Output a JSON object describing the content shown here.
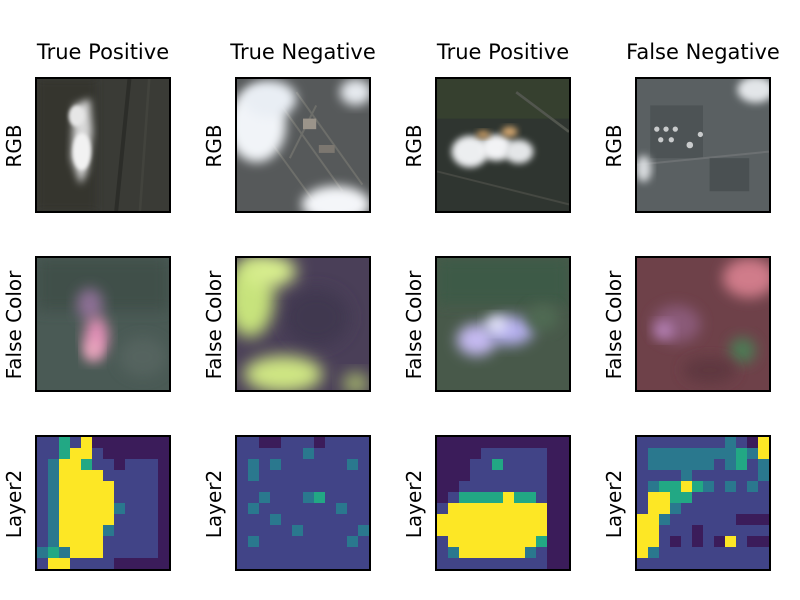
{
  "columns": [
    {
      "title": "True Positive",
      "row_labels": [
        "RGB",
        "False Color",
        "Layer2"
      ]
    },
    {
      "title": "True Negative",
      "row_labels": [
        "RGB",
        "False Color",
        "Layer2"
      ]
    },
    {
      "title": "True Positive",
      "row_labels": [
        "RGB",
        "False Color",
        "Layer2"
      ]
    },
    {
      "title": "False Negative",
      "row_labels": [
        "RGB",
        "False Color",
        "Layer2"
      ]
    }
  ],
  "colors": {
    "viridis_dark": "#3b1c5a",
    "viridis_teal": "#21908c",
    "viridis_yellow": "#fde725",
    "frame": "#000000"
  },
  "layer2": [
    {
      "grid": [
        [
          1,
          1,
          3,
          1,
          4,
          0,
          0,
          0,
          0,
          0,
          0,
          0
        ],
        [
          1,
          1,
          3,
          4,
          4,
          1,
          0,
          0,
          0,
          0,
          0,
          0
        ],
        [
          1,
          2,
          4,
          4,
          3,
          1,
          1,
          0,
          1,
          1,
          1,
          0
        ],
        [
          1,
          2,
          4,
          4,
          4,
          4,
          1,
          1,
          1,
          1,
          1,
          0
        ],
        [
          1,
          2,
          4,
          4,
          4,
          4,
          4,
          1,
          1,
          1,
          1,
          0
        ],
        [
          1,
          2,
          4,
          4,
          4,
          4,
          4,
          1,
          1,
          1,
          1,
          0
        ],
        [
          1,
          2,
          4,
          4,
          4,
          4,
          4,
          2,
          1,
          1,
          1,
          0
        ],
        [
          1,
          2,
          4,
          4,
          4,
          4,
          4,
          1,
          1,
          1,
          1,
          0
        ],
        [
          1,
          2,
          4,
          4,
          4,
          4,
          2,
          1,
          1,
          1,
          1,
          0
        ],
        [
          1,
          2,
          4,
          4,
          4,
          4,
          1,
          1,
          1,
          1,
          1,
          0
        ],
        [
          2,
          3,
          2,
          4,
          4,
          4,
          1,
          1,
          1,
          1,
          1,
          0
        ],
        [
          1,
          4,
          4,
          1,
          1,
          1,
          1,
          0,
          0,
          0,
          0,
          0
        ]
      ]
    },
    {
      "grid": [
        [
          1,
          1,
          0,
          0,
          1,
          1,
          1,
          0,
          1,
          1,
          1,
          1
        ],
        [
          1,
          1,
          1,
          1,
          1,
          1,
          2,
          1,
          1,
          1,
          1,
          1
        ],
        [
          1,
          2,
          1,
          2,
          1,
          1,
          1,
          1,
          1,
          1,
          2,
          1
        ],
        [
          1,
          2,
          1,
          1,
          1,
          1,
          1,
          1,
          1,
          1,
          1,
          1
        ],
        [
          1,
          1,
          1,
          1,
          1,
          1,
          1,
          1,
          1,
          1,
          1,
          1
        ],
        [
          1,
          1,
          2,
          1,
          1,
          1,
          2,
          3,
          1,
          1,
          1,
          1
        ],
        [
          1,
          2,
          1,
          1,
          1,
          1,
          1,
          1,
          1,
          2,
          1,
          1
        ],
        [
          1,
          1,
          1,
          2,
          1,
          1,
          1,
          1,
          1,
          1,
          1,
          1
        ],
        [
          1,
          1,
          1,
          1,
          1,
          2,
          1,
          1,
          1,
          1,
          1,
          2
        ],
        [
          1,
          2,
          1,
          1,
          1,
          1,
          1,
          1,
          1,
          1,
          2,
          1
        ],
        [
          1,
          1,
          1,
          1,
          1,
          1,
          1,
          1,
          1,
          1,
          1,
          1
        ],
        [
          1,
          1,
          1,
          1,
          1,
          1,
          1,
          1,
          1,
          1,
          1,
          1
        ]
      ]
    },
    {
      "grid": [
        [
          0,
          0,
          0,
          0,
          0,
          0,
          0,
          0,
          0,
          0,
          0,
          0
        ],
        [
          0,
          0,
          0,
          0,
          1,
          1,
          1,
          1,
          1,
          1,
          0,
          0
        ],
        [
          0,
          0,
          0,
          1,
          1,
          3,
          1,
          1,
          1,
          1,
          0,
          0
        ],
        [
          0,
          0,
          0,
          1,
          1,
          1,
          1,
          1,
          1,
          1,
          0,
          0
        ],
        [
          0,
          0,
          1,
          1,
          1,
          1,
          1,
          1,
          1,
          1,
          0,
          0
        ],
        [
          0,
          1,
          3,
          3,
          3,
          3,
          4,
          3,
          3,
          1,
          0,
          0
        ],
        [
          1,
          4,
          4,
          4,
          4,
          4,
          4,
          4,
          4,
          4,
          0,
          0
        ],
        [
          4,
          4,
          4,
          4,
          4,
          4,
          4,
          4,
          4,
          4,
          0,
          0
        ],
        [
          4,
          4,
          4,
          4,
          4,
          4,
          4,
          4,
          4,
          4,
          0,
          0
        ],
        [
          1,
          4,
          4,
          4,
          4,
          4,
          4,
          4,
          4,
          3,
          0,
          0
        ],
        [
          1,
          2,
          4,
          4,
          4,
          4,
          4,
          4,
          2,
          1,
          0,
          0
        ],
        [
          1,
          1,
          1,
          1,
          1,
          1,
          1,
          1,
          1,
          1,
          0,
          0
        ]
      ]
    },
    {
      "grid": [
        [
          1,
          1,
          1,
          1,
          1,
          1,
          1,
          1,
          2,
          1,
          0,
          4
        ],
        [
          1,
          2,
          2,
          2,
          2,
          2,
          2,
          2,
          2,
          3,
          2,
          4
        ],
        [
          1,
          2,
          2,
          2,
          2,
          2,
          2,
          1,
          2,
          3,
          1,
          2
        ],
        [
          1,
          1,
          1,
          1,
          2,
          1,
          1,
          1,
          1,
          1,
          1,
          2
        ],
        [
          1,
          2,
          3,
          3,
          4,
          3,
          2,
          1,
          2,
          1,
          2,
          1
        ],
        [
          1,
          4,
          4,
          3,
          3,
          1,
          1,
          1,
          1,
          1,
          1,
          1
        ],
        [
          1,
          4,
          4,
          2,
          1,
          1,
          1,
          1,
          1,
          1,
          1,
          1
        ],
        [
          4,
          4,
          2,
          1,
          1,
          1,
          1,
          1,
          1,
          0,
          0,
          0
        ],
        [
          4,
          4,
          1,
          1,
          1,
          0,
          1,
          1,
          1,
          1,
          1,
          1
        ],
        [
          4,
          4,
          1,
          0,
          1,
          0,
          1,
          0,
          4,
          1,
          0,
          0
        ],
        [
          4,
          2,
          1,
          1,
          1,
          1,
          1,
          1,
          1,
          1,
          1,
          1
        ],
        [
          1,
          1,
          1,
          1,
          1,
          1,
          1,
          1,
          1,
          1,
          1,
          1
        ]
      ]
    }
  ]
}
